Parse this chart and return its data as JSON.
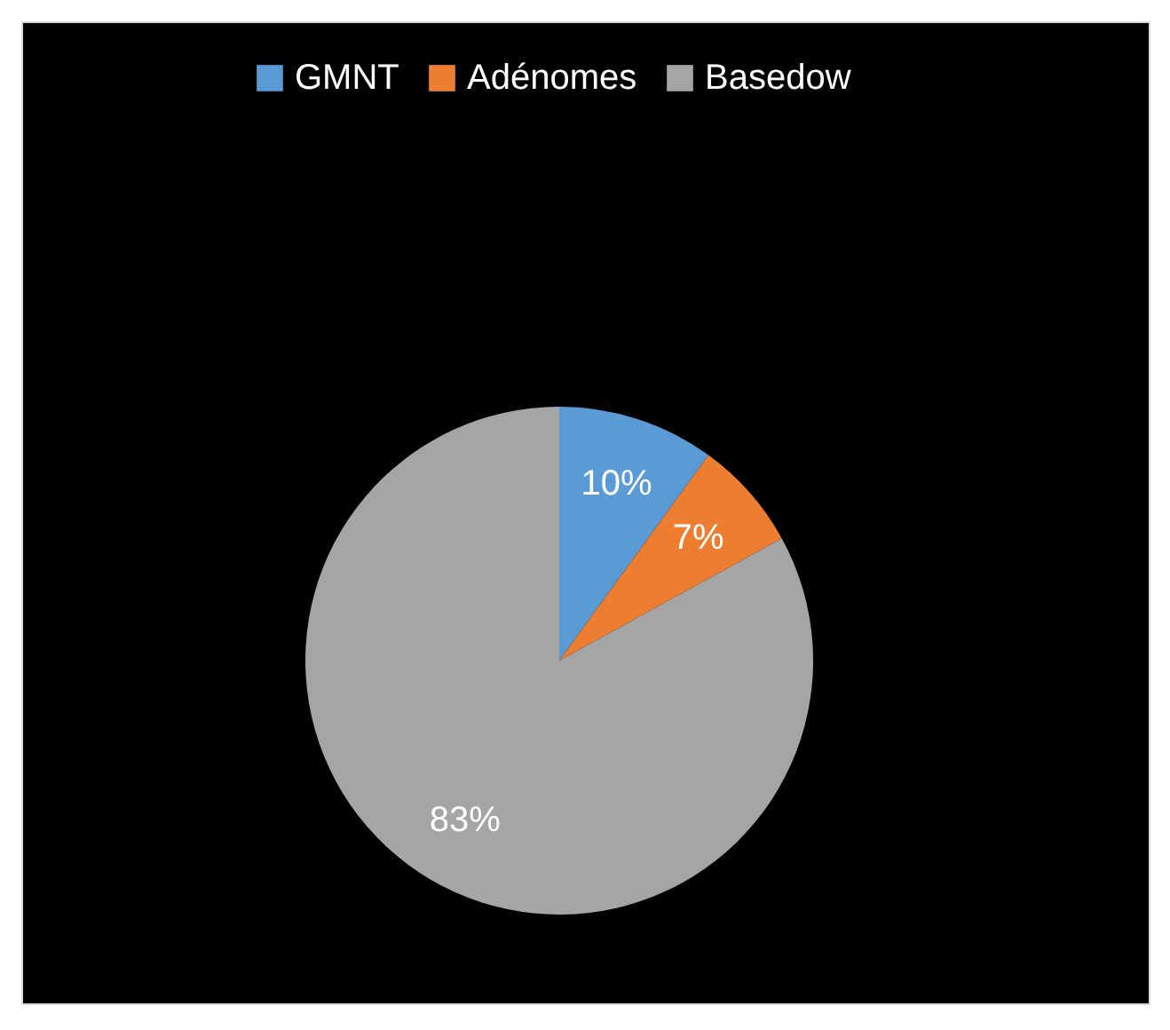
{
  "chart_data": {
    "type": "pie",
    "categories": [
      "GMNT",
      "Adénomes",
      "Basedow"
    ],
    "values": [
      10,
      7,
      83
    ],
    "colors": [
      "#5b9bd5",
      "#ed7d31",
      "#a5a5a5"
    ],
    "value_labels": [
      "10%",
      "7%",
      "83%"
    ],
    "legend": "top"
  }
}
